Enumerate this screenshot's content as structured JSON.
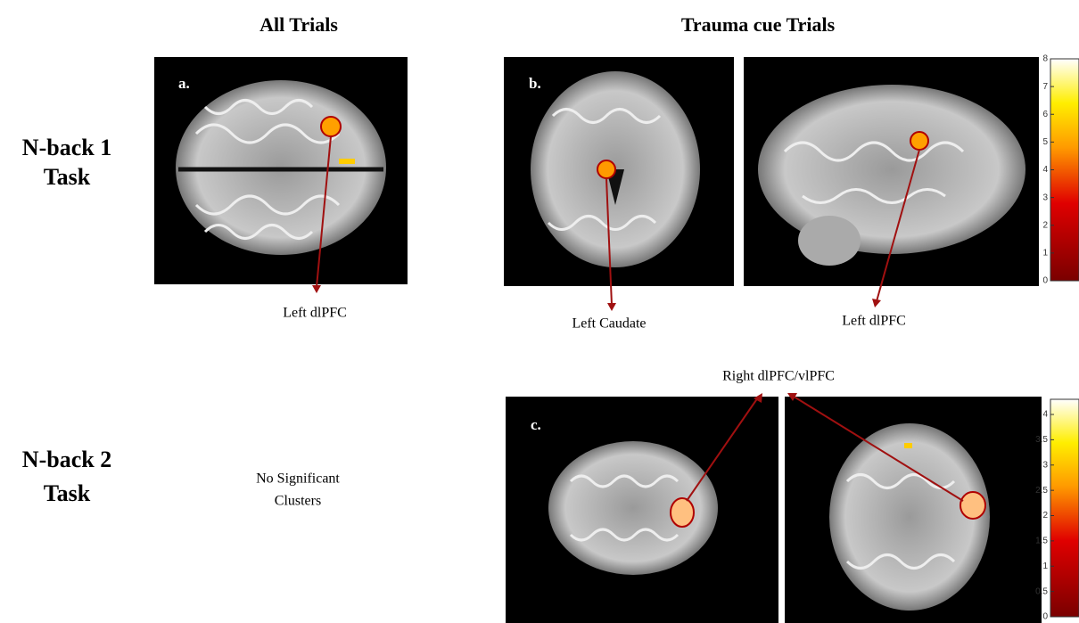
{
  "columns": [
    "All Trials",
    "Trauma cue Trials"
  ],
  "rows": [
    {
      "lines": [
        "N-back 1",
        "Task"
      ]
    },
    {
      "lines": [
        "N-back 2",
        "Task"
      ]
    }
  ],
  "panels": {
    "a": {
      "letter": "a.",
      "label": "Left dlPFC"
    },
    "b": {
      "letter": "b.",
      "labels": [
        "Left Caudate",
        "Left dlPFC"
      ]
    },
    "c": {
      "letter": "c.",
      "label": "Right dlPFC/vlPFC"
    }
  },
  "note": [
    "No Significant",
    "Clusters"
  ],
  "colorbars": [
    {
      "range": [
        0,
        8
      ],
      "ticks": [
        0,
        1,
        2,
        3,
        4,
        5,
        6,
        7,
        8
      ]
    },
    {
      "range": [
        0,
        4.3
      ],
      "ticks": [
        0,
        0.5,
        1,
        1.5,
        2,
        2.5,
        3,
        3.5,
        4
      ]
    }
  ]
}
